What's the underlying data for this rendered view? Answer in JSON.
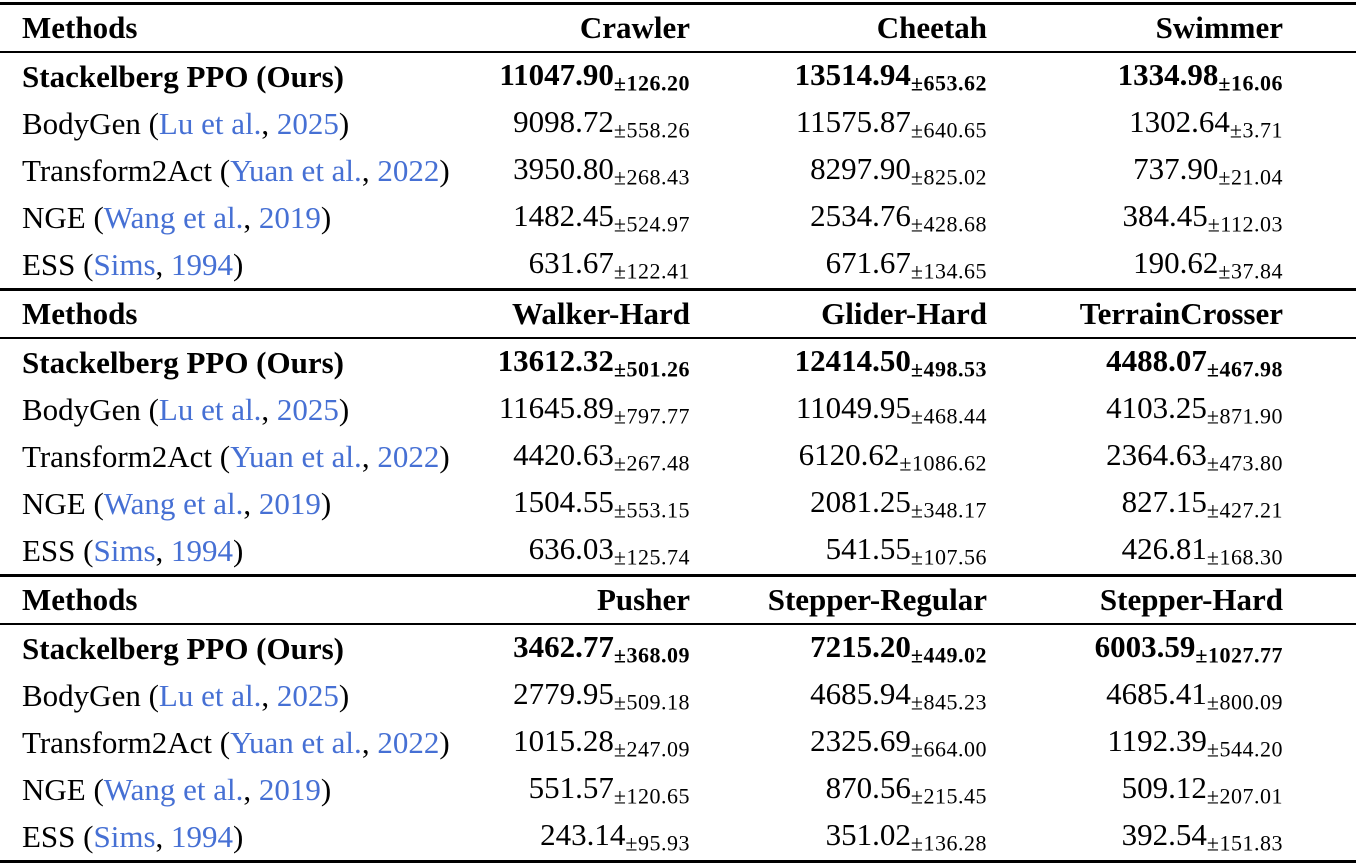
{
  "labels": {
    "methods_header": "Methods"
  },
  "colors": {
    "text": "#000000",
    "citation_link": "#4670d4",
    "rule": "#000000",
    "background": "#ffffff"
  },
  "sections": [
    {
      "columns": [
        "Crawler",
        "Cheetah",
        "Swimmer"
      ],
      "rows": [
        {
          "method": {
            "name": "Stackelberg PPO (Ours)"
          },
          "bold": true,
          "values": [
            {
              "mean": "11047.90",
              "std": "±126.20"
            },
            {
              "mean": "13514.94",
              "std": "±653.62"
            },
            {
              "mean": "1334.98",
              "std": "±16.06"
            }
          ]
        },
        {
          "method": {
            "pre": "BodyGen (",
            "authors": "Lu et al.",
            "mid": ", ",
            "year": "2025",
            "post": ")"
          },
          "bold": false,
          "values": [
            {
              "mean": "9098.72",
              "std": "±558.26"
            },
            {
              "mean": "11575.87",
              "std": "±640.65"
            },
            {
              "mean": "1302.64",
              "std": "±3.71"
            }
          ]
        },
        {
          "method": {
            "pre": "Transform2Act (",
            "authors": "Yuan et al.",
            "mid": ", ",
            "year": "2022",
            "post": ")"
          },
          "bold": false,
          "values": [
            {
              "mean": "3950.80",
              "std": "±268.43"
            },
            {
              "mean": "8297.90",
              "std": "±825.02"
            },
            {
              "mean": "737.90",
              "std": "±21.04"
            }
          ]
        },
        {
          "method": {
            "pre": "NGE (",
            "authors": "Wang et al.",
            "mid": ", ",
            "year": "2019",
            "post": ")"
          },
          "bold": false,
          "values": [
            {
              "mean": "1482.45",
              "std": "±524.97"
            },
            {
              "mean": "2534.76",
              "std": "±428.68"
            },
            {
              "mean": "384.45",
              "std": "±112.03"
            }
          ]
        },
        {
          "method": {
            "pre": "ESS (",
            "authors": "Sims",
            "mid": ", ",
            "year": "1994",
            "post": ")"
          },
          "bold": false,
          "values": [
            {
              "mean": "631.67",
              "std": "±122.41"
            },
            {
              "mean": "671.67",
              "std": "±134.65"
            },
            {
              "mean": "190.62",
              "std": "±37.84"
            }
          ]
        }
      ]
    },
    {
      "columns": [
        "Walker-Hard",
        "Glider-Hard",
        "TerrainCrosser"
      ],
      "rows": [
        {
          "method": {
            "name": "Stackelberg PPO (Ours)"
          },
          "bold": true,
          "values": [
            {
              "mean": "13612.32",
              "std": "±501.26"
            },
            {
              "mean": "12414.50",
              "std": "±498.53"
            },
            {
              "mean": "4488.07",
              "std": "±467.98"
            }
          ]
        },
        {
          "method": {
            "pre": "BodyGen (",
            "authors": "Lu et al.",
            "mid": ", ",
            "year": "2025",
            "post": ")"
          },
          "bold": false,
          "values": [
            {
              "mean": "11645.89",
              "std": "±797.77"
            },
            {
              "mean": "11049.95",
              "std": "±468.44"
            },
            {
              "mean": "4103.25",
              "std": "±871.90"
            }
          ]
        },
        {
          "method": {
            "pre": "Transform2Act (",
            "authors": "Yuan et al.",
            "mid": ", ",
            "year": "2022",
            "post": ")"
          },
          "bold": false,
          "values": [
            {
              "mean": "4420.63",
              "std": "±267.48"
            },
            {
              "mean": "6120.62",
              "std": "±1086.62"
            },
            {
              "mean": "2364.63",
              "std": "±473.80"
            }
          ]
        },
        {
          "method": {
            "pre": "NGE (",
            "authors": "Wang et al.",
            "mid": ", ",
            "year": "2019",
            "post": ")"
          },
          "bold": false,
          "values": [
            {
              "mean": "1504.55",
              "std": "±553.15"
            },
            {
              "mean": "2081.25",
              "std": "±348.17"
            },
            {
              "mean": "827.15",
              "std": "±427.21"
            }
          ]
        },
        {
          "method": {
            "pre": "ESS (",
            "authors": "Sims",
            "mid": ", ",
            "year": "1994",
            "post": ")"
          },
          "bold": false,
          "values": [
            {
              "mean": "636.03",
              "std": "±125.74"
            },
            {
              "mean": "541.55",
              "std": "±107.56"
            },
            {
              "mean": "426.81",
              "std": "±168.30"
            }
          ]
        }
      ]
    },
    {
      "columns": [
        "Pusher",
        "Stepper-Regular",
        "Stepper-Hard"
      ],
      "rows": [
        {
          "method": {
            "name": "Stackelberg PPO (Ours)"
          },
          "bold": true,
          "values": [
            {
              "mean": "3462.77",
              "std": "±368.09"
            },
            {
              "mean": "7215.20",
              "std": "±449.02"
            },
            {
              "mean": "6003.59",
              "std": "±1027.77"
            }
          ]
        },
        {
          "method": {
            "pre": "BodyGen (",
            "authors": "Lu et al.",
            "mid": ", ",
            "year": "2025",
            "post": ")"
          },
          "bold": false,
          "values": [
            {
              "mean": "2779.95",
              "std": "±509.18"
            },
            {
              "mean": "4685.94",
              "std": "±845.23"
            },
            {
              "mean": "4685.41",
              "std": "±800.09"
            }
          ]
        },
        {
          "method": {
            "pre": "Transform2Act (",
            "authors": "Yuan et al.",
            "mid": ", ",
            "year": "2022",
            "post": ")"
          },
          "bold": false,
          "values": [
            {
              "mean": "1015.28",
              "std": "±247.09"
            },
            {
              "mean": "2325.69",
              "std": "±664.00"
            },
            {
              "mean": "1192.39",
              "std": "±544.20"
            }
          ]
        },
        {
          "method": {
            "pre": "NGE (",
            "authors": "Wang et al.",
            "mid": ", ",
            "year": "2019",
            "post": ")"
          },
          "bold": false,
          "values": [
            {
              "mean": "551.57",
              "std": "±120.65"
            },
            {
              "mean": "870.56",
              "std": "±215.45"
            },
            {
              "mean": "509.12",
              "std": "±207.01"
            }
          ]
        },
        {
          "method": {
            "pre": "ESS (",
            "authors": "Sims",
            "mid": ", ",
            "year": "1994",
            "post": ")"
          },
          "bold": false,
          "values": [
            {
              "mean": "243.14",
              "std": "±95.93"
            },
            {
              "mean": "351.02",
              "std": "±136.28"
            },
            {
              "mean": "392.54",
              "std": "±151.83"
            }
          ]
        }
      ]
    }
  ]
}
